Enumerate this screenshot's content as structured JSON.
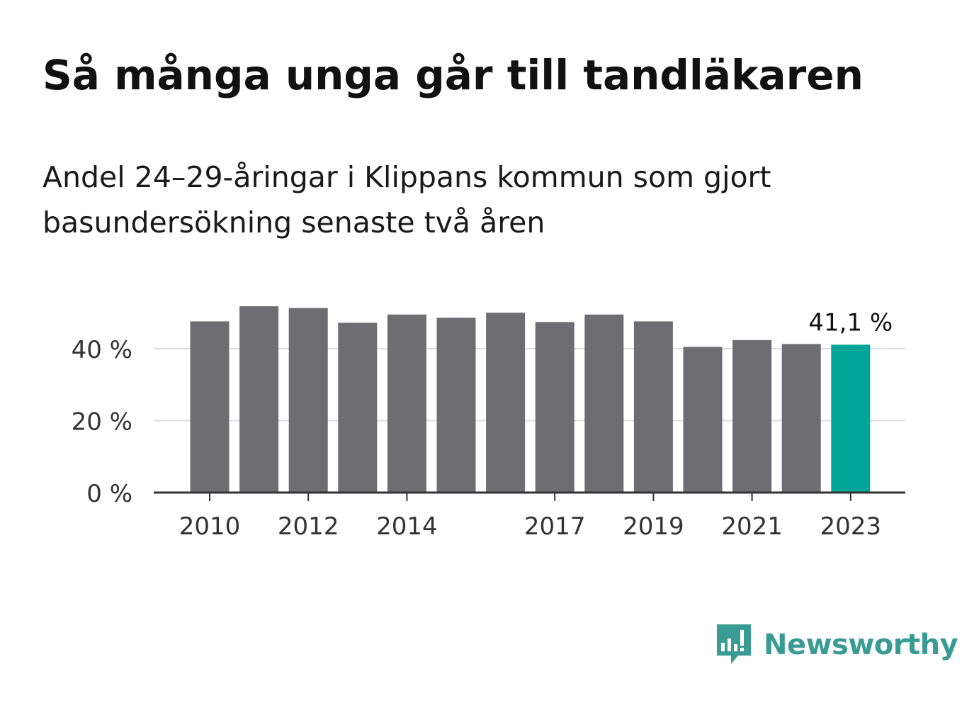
{
  "title": "Så många unga går till tandläkaren",
  "subtitle": "Andel 24–29-åringar i Klippans kommun som gjort basundersökning senaste två åren",
  "brand": {
    "name": "Newsworthy",
    "color": "#3a9b94"
  },
  "colors": {
    "bar": "#6e6d72",
    "highlight": "#00a69a",
    "grid": "#dddddd",
    "axis": "#333333"
  },
  "chart_data": {
    "type": "bar",
    "categories": [
      "2010",
      "2011",
      "2012",
      "2013",
      "2014",
      "2015",
      "2016",
      "2017",
      "2018",
      "2019",
      "2020",
      "2021",
      "2022",
      "2023"
    ],
    "values": [
      47.6,
      51.8,
      51.3,
      47.2,
      49.5,
      48.6,
      50.0,
      47.4,
      49.5,
      47.6,
      40.5,
      42.4,
      41.3,
      41.1
    ],
    "highlight_index": 13,
    "highlight_label": "41,1 %",
    "x_tick_labels": [
      "2010",
      "2012",
      "2014",
      "2017",
      "2019",
      "2021",
      "2023"
    ],
    "y_ticks": [
      0,
      20,
      40
    ],
    "y_tick_labels": [
      "0 %",
      "20 %",
      "40 %"
    ],
    "ylim": [
      0,
      52
    ],
    "grid": true,
    "xlabel": "",
    "ylabel": ""
  }
}
